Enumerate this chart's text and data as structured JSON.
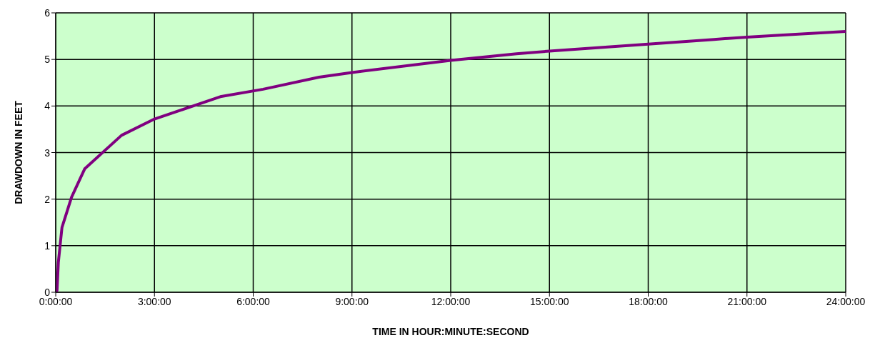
{
  "chart_data": {
    "type": "line",
    "xlabel": "TIME IN HOUR:MINUTE:SECOND",
    "ylabel": "DRAWDOWN IN FEET",
    "x": [
      0,
      0.04,
      0.08,
      0.19,
      0.48,
      0.88,
      2,
      3,
      5,
      6.3,
      8,
      9,
      12,
      14,
      15,
      18,
      20,
      21,
      22,
      24
    ],
    "series": [
      {
        "color": "#800080",
        "values": [
          0,
          0.04,
          0.64,
          1.39,
          2.04,
          2.65,
          3.37,
          3.72,
          4.2,
          4.36,
          4.62,
          4.72,
          4.98,
          5.12,
          5.18,
          5.33,
          5.43,
          5.48,
          5.52,
          5.6
        ]
      }
    ],
    "xlim": [
      0,
      24
    ],
    "xticks": [
      {
        "value": 0,
        "label": "0:00:00"
      },
      {
        "value": 3,
        "label": "3:00:00"
      },
      {
        "value": 6,
        "label": "6:00:00"
      },
      {
        "value": 9,
        "label": "9:00:00"
      },
      {
        "value": 12,
        "label": "12:00:00"
      },
      {
        "value": 15,
        "label": "15:00:00"
      },
      {
        "value": 18,
        "label": "18:00:00"
      },
      {
        "value": 21,
        "label": "21:00:00"
      },
      {
        "value": 24,
        "label": "24:00:00"
      }
    ],
    "ylim": [
      0,
      6
    ],
    "yticks": [
      0,
      1,
      2,
      3,
      4,
      5,
      6
    ],
    "grid": true,
    "legend": false,
    "marker": "none",
    "line_style": "solid"
  }
}
